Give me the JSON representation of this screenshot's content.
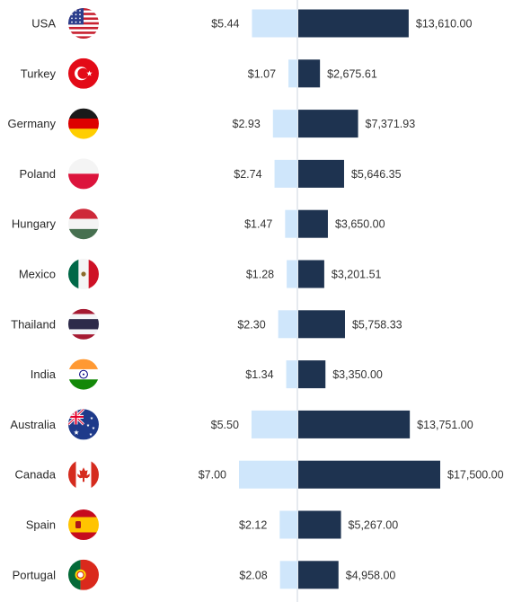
{
  "chart_data": {
    "type": "bar",
    "categories": [
      "USA",
      "Turkey",
      "Germany",
      "Poland",
      "Hungary",
      "Mexico",
      "Thailand",
      "India",
      "Australia",
      "Canada",
      "Spain",
      "Portugal"
    ],
    "series": [
      {
        "labels": [
          "$5.44",
          "$1.07",
          "$2.93",
          "$2.74",
          "$1.47",
          "$1.28",
          "$2.30",
          "$1.34",
          "$5.50",
          "$7.00",
          "$2.12",
          "$2.08"
        ],
        "values": [
          5.44,
          1.07,
          2.93,
          2.74,
          1.47,
          1.28,
          2.3,
          1.34,
          5.5,
          7.0,
          2.12,
          2.08
        ],
        "color": "#cfe6fb",
        "direction": "left"
      },
      {
        "labels": [
          "$13,610.00",
          "$2,675.61",
          "$7,371.93",
          "$5,646.35",
          "$3,650.00",
          "$3,201.51",
          "$5,758.33",
          "$3,350.00",
          "$13,751.00",
          "$17,500.00",
          "$5,267.00",
          "$4,958.00"
        ],
        "values": [
          13610.0,
          2675.61,
          7371.93,
          5646.35,
          3650.0,
          3201.51,
          5758.33,
          3350.0,
          13751.0,
          17500.0,
          5267.0,
          4958.0
        ],
        "color": "#1e3350",
        "direction": "right"
      }
    ],
    "flags": [
      "usa-flag-icon",
      "turkey-flag-icon",
      "germany-flag-icon",
      "poland-flag-icon",
      "hungary-flag-icon",
      "mexico-flag-icon",
      "thailand-flag-icon",
      "india-flag-icon",
      "australia-flag-icon",
      "canada-flag-icon",
      "spain-flag-icon",
      "portugal-flag-icon"
    ],
    "divider_color": "#dde3ea",
    "title": "",
    "xlabel": "",
    "ylabel": ""
  }
}
